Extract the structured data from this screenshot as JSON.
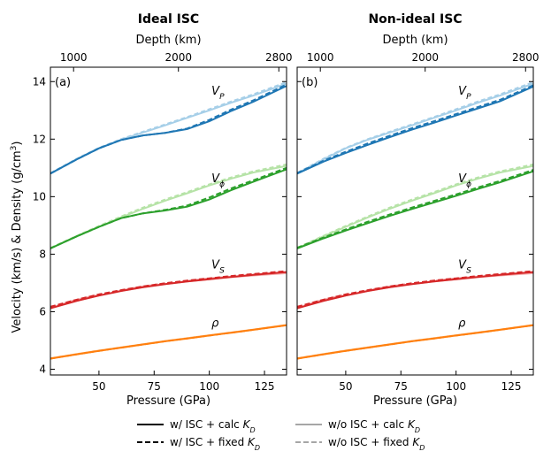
{
  "figure": {
    "ylabel": "Velocity (km/s) & Density (g/cm",
    "ylabel_sup": "3",
    "ylabel_close": ")",
    "legend": [
      {
        "label": "w/ ISC + calc ",
        "sub": "D",
        "K": "K",
        "color": "#000000",
        "dash": false
      },
      {
        "label": "w/ ISC + fixed ",
        "sub": "D",
        "K": "K",
        "color": "#000000",
        "dash": true
      },
      {
        "label": "w/o ISC + calc ",
        "sub": "D",
        "K": "K",
        "color": "#a6a6a6",
        "dash": false
      },
      {
        "label": "w/o ISC + fixed ",
        "sub": "D",
        "K": "K",
        "color": "#a6a6a6",
        "dash": true
      }
    ]
  },
  "chart_data": [
    {
      "type": "line",
      "title": "Ideal ISC",
      "panel_label": "(a)",
      "xlabel": "Pressure (GPa)",
      "top_xlabel": "Depth (km)",
      "xlim": [
        28,
        135
      ],
      "ylim": [
        3.8,
        14.5
      ],
      "xticks": [
        50,
        75,
        100,
        125
      ],
      "yticks": [
        4,
        6,
        8,
        10,
        12,
        14
      ],
      "top_ticks": [
        {
          "label": "1000",
          "pressure": 38.5
        },
        {
          "label": "2000",
          "pressure": 86
        },
        {
          "label": "2800",
          "pressure": 131.5
        }
      ],
      "x": [
        28,
        40,
        50,
        60,
        70,
        80,
        90,
        100,
        110,
        120,
        135
      ],
      "series": [
        {
          "name": "V_P",
          "label_main": "V",
          "label_sub": "P",
          "color": "#1f77b4",
          "light": "#a6cfe8",
          "label_at": [
            101,
            13.55
          ],
          "with_isc_calc": [
            10.8,
            11.3,
            11.68,
            11.97,
            12.13,
            12.22,
            12.35,
            12.62,
            12.98,
            13.3,
            13.85
          ],
          "with_isc_fixed": [
            10.8,
            11.3,
            11.68,
            11.97,
            12.13,
            12.22,
            12.37,
            12.67,
            13.03,
            13.35,
            13.9
          ],
          "without_isc_calc": [
            10.8,
            11.3,
            11.68,
            11.98,
            12.23,
            12.48,
            12.74,
            13.0,
            13.27,
            13.52,
            13.93
          ],
          "without_isc_fixed": [
            10.82,
            11.32,
            11.7,
            12.0,
            12.26,
            12.51,
            12.77,
            13.04,
            13.31,
            13.56,
            13.98
          ]
        },
        {
          "name": "V_phi",
          "label_main": "V",
          "label_sub": "ϕ",
          "color": "#2ca02c",
          "light": "#b6e3a7",
          "label_at": [
            101,
            10.5
          ],
          "with_isc_calc": [
            8.2,
            8.62,
            8.95,
            9.25,
            9.42,
            9.52,
            9.65,
            9.9,
            10.23,
            10.52,
            10.95
          ],
          "with_isc_fixed": [
            8.2,
            8.62,
            8.95,
            9.25,
            9.42,
            9.54,
            9.69,
            9.97,
            10.29,
            10.57,
            11.0
          ],
          "without_isc_calc": [
            8.2,
            8.62,
            8.95,
            9.28,
            9.58,
            9.86,
            10.12,
            10.39,
            10.63,
            10.84,
            11.07
          ],
          "without_isc_fixed": [
            8.22,
            8.64,
            8.98,
            9.31,
            9.62,
            9.9,
            10.16,
            10.43,
            10.67,
            10.88,
            11.12
          ]
        },
        {
          "name": "V_S",
          "label_main": "V",
          "label_sub": "S",
          "color": "#d62728",
          "light": "#f4a9a9",
          "label_at": [
            101,
            7.5
          ],
          "with_isc_calc": [
            6.12,
            6.38,
            6.56,
            6.72,
            6.85,
            6.96,
            7.05,
            7.13,
            7.21,
            7.28,
            7.38
          ],
          "with_isc_fixed": [
            6.17,
            6.42,
            6.6,
            6.75,
            6.88,
            6.99,
            7.08,
            7.16,
            7.24,
            7.31,
            7.41
          ],
          "without_isc_calc": [
            6.12,
            6.38,
            6.56,
            6.72,
            6.85,
            6.96,
            7.05,
            7.13,
            7.2,
            7.26,
            7.34
          ],
          "without_isc_fixed": [
            6.17,
            6.42,
            6.6,
            6.75,
            6.88,
            6.99,
            7.08,
            7.16,
            7.23,
            7.29,
            7.37
          ]
        },
        {
          "name": "rho",
          "label_main": "ρ",
          "label_sub": "",
          "color": "#ff7f0e",
          "light": "#fcc591",
          "label_at": [
            101,
            5.48
          ],
          "with_isc_calc": [
            4.37,
            4.52,
            4.64,
            4.75,
            4.86,
            4.97,
            5.07,
            5.17,
            5.27,
            5.37,
            5.53
          ],
          "with_isc_fixed": [
            4.37,
            4.52,
            4.64,
            4.75,
            4.86,
            4.97,
            5.07,
            5.17,
            5.27,
            5.37,
            5.53
          ],
          "without_isc_calc": [
            4.38,
            4.53,
            4.65,
            4.76,
            4.87,
            4.98,
            5.08,
            5.18,
            5.28,
            5.38,
            5.54
          ],
          "without_isc_fixed": [
            4.38,
            4.53,
            4.65,
            4.76,
            4.87,
            4.98,
            5.08,
            5.18,
            5.28,
            5.38,
            5.54
          ]
        }
      ]
    },
    {
      "type": "line",
      "title": "Non-ideal ISC",
      "panel_label": "(b)",
      "xlabel": "Pressure (GPa)",
      "top_xlabel": "Depth (km)",
      "xlim": [
        28,
        135
      ],
      "ylim": [
        3.8,
        14.5
      ],
      "xticks": [
        50,
        75,
        100,
        125
      ],
      "yticks": [
        4,
        6,
        8,
        10,
        12,
        14
      ],
      "top_ticks": [
        {
          "label": "1000",
          "pressure": 38.5
        },
        {
          "label": "2000",
          "pressure": 86
        },
        {
          "label": "2800",
          "pressure": 131.5
        }
      ],
      "x": [
        28,
        40,
        50,
        60,
        70,
        80,
        90,
        100,
        110,
        120,
        135
      ],
      "series": [
        {
          "name": "V_P",
          "label_main": "V",
          "label_sub": "P",
          "color": "#1f77b4",
          "light": "#a6cfe8",
          "label_at": [
            101,
            13.55
          ],
          "with_isc_calc": [
            10.8,
            11.22,
            11.52,
            11.8,
            12.07,
            12.33,
            12.57,
            12.82,
            13.07,
            13.32,
            13.83
          ],
          "with_isc_fixed": [
            10.82,
            11.25,
            11.56,
            11.85,
            12.12,
            12.38,
            12.62,
            12.87,
            13.12,
            13.37,
            13.87
          ],
          "without_isc_calc": [
            10.8,
            11.3,
            11.68,
            11.98,
            12.23,
            12.48,
            12.74,
            13.0,
            13.27,
            13.52,
            13.93
          ],
          "without_isc_fixed": [
            10.82,
            11.32,
            11.7,
            12.0,
            12.26,
            12.51,
            12.77,
            13.04,
            13.31,
            13.56,
            13.98
          ]
        },
        {
          "name": "V_phi",
          "label_main": "V",
          "label_sub": "ϕ",
          "color": "#2ca02c",
          "light": "#b6e3a7",
          "label_at": [
            101,
            10.5
          ],
          "with_isc_calc": [
            8.2,
            8.55,
            8.82,
            9.08,
            9.33,
            9.57,
            9.8,
            10.03,
            10.27,
            10.5,
            10.88
          ],
          "with_isc_fixed": [
            8.22,
            8.58,
            8.86,
            9.13,
            9.38,
            9.62,
            9.85,
            10.08,
            10.32,
            10.55,
            10.93
          ],
          "without_isc_calc": [
            8.2,
            8.62,
            8.95,
            9.28,
            9.58,
            9.86,
            10.12,
            10.39,
            10.63,
            10.84,
            11.07
          ],
          "without_isc_fixed": [
            8.22,
            8.64,
            8.98,
            9.31,
            9.62,
            9.9,
            10.16,
            10.43,
            10.67,
            10.88,
            11.12
          ]
        },
        {
          "name": "V_S",
          "label_main": "V",
          "label_sub": "S",
          "color": "#d62728",
          "light": "#f4a9a9",
          "label_at": [
            101,
            7.5
          ],
          "with_isc_calc": [
            6.12,
            6.38,
            6.56,
            6.72,
            6.85,
            6.96,
            7.05,
            7.13,
            7.21,
            7.28,
            7.38
          ],
          "with_isc_fixed": [
            6.17,
            6.42,
            6.6,
            6.75,
            6.88,
            6.99,
            7.08,
            7.16,
            7.24,
            7.31,
            7.41
          ],
          "without_isc_calc": [
            6.12,
            6.38,
            6.56,
            6.72,
            6.85,
            6.96,
            7.05,
            7.13,
            7.2,
            7.26,
            7.34
          ],
          "without_isc_fixed": [
            6.17,
            6.42,
            6.6,
            6.75,
            6.88,
            6.99,
            7.08,
            7.16,
            7.23,
            7.29,
            7.37
          ]
        },
        {
          "name": "rho",
          "label_main": "ρ",
          "label_sub": "",
          "color": "#ff7f0e",
          "light": "#fcc591",
          "label_at": [
            101,
            5.48
          ],
          "with_isc_calc": [
            4.37,
            4.52,
            4.64,
            4.75,
            4.86,
            4.97,
            5.07,
            5.17,
            5.27,
            5.37,
            5.53
          ],
          "with_isc_fixed": [
            4.37,
            4.52,
            4.64,
            4.75,
            4.86,
            4.97,
            5.07,
            5.17,
            5.27,
            5.37,
            5.53
          ],
          "without_isc_calc": [
            4.38,
            4.53,
            4.65,
            4.76,
            4.87,
            4.98,
            5.08,
            5.18,
            5.28,
            5.38,
            5.54
          ],
          "without_isc_fixed": [
            4.38,
            4.53,
            4.65,
            4.76,
            4.87,
            4.98,
            5.08,
            5.18,
            5.28,
            5.38,
            5.54
          ]
        }
      ]
    }
  ]
}
